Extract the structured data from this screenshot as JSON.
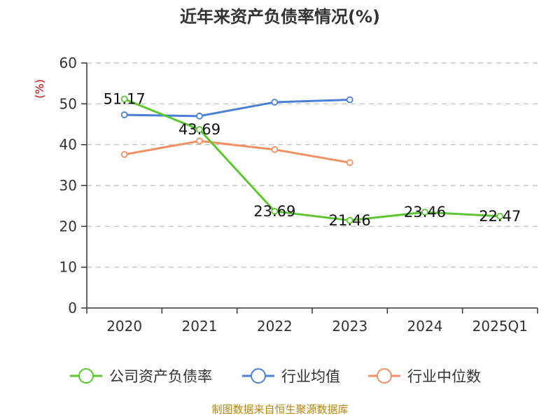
{
  "chart_data": {
    "type": "line",
    "title": "近年来资产负债率情况(%)",
    "ylabel": "(%)",
    "categories": [
      "2020",
      "2021",
      "2022",
      "2023",
      "2024",
      "2025Q1"
    ],
    "ylim": [
      0,
      60
    ],
    "yticks": [
      0,
      10,
      20,
      30,
      40,
      50,
      60
    ],
    "grid": true,
    "legend_position": "bottom",
    "series": [
      {
        "name": "公司资产负债率",
        "color": "#5cc72e",
        "values": [
          51.17,
          43.69,
          23.69,
          21.46,
          23.46,
          22.47
        ],
        "labels": [
          "51.17",
          "43.69",
          "23.69",
          "21.46",
          "23.46",
          "22.47"
        ]
      },
      {
        "name": "行业均值",
        "color": "#4a7fda",
        "values": [
          47.3,
          47.0,
          50.4,
          51.0,
          null,
          null
        ]
      },
      {
        "name": "行业中位数",
        "color": "#f49060",
        "values": [
          37.6,
          40.9,
          38.8,
          35.6,
          null,
          null
        ]
      }
    ]
  },
  "source_note": "制图数据来自恒生聚源数据库"
}
